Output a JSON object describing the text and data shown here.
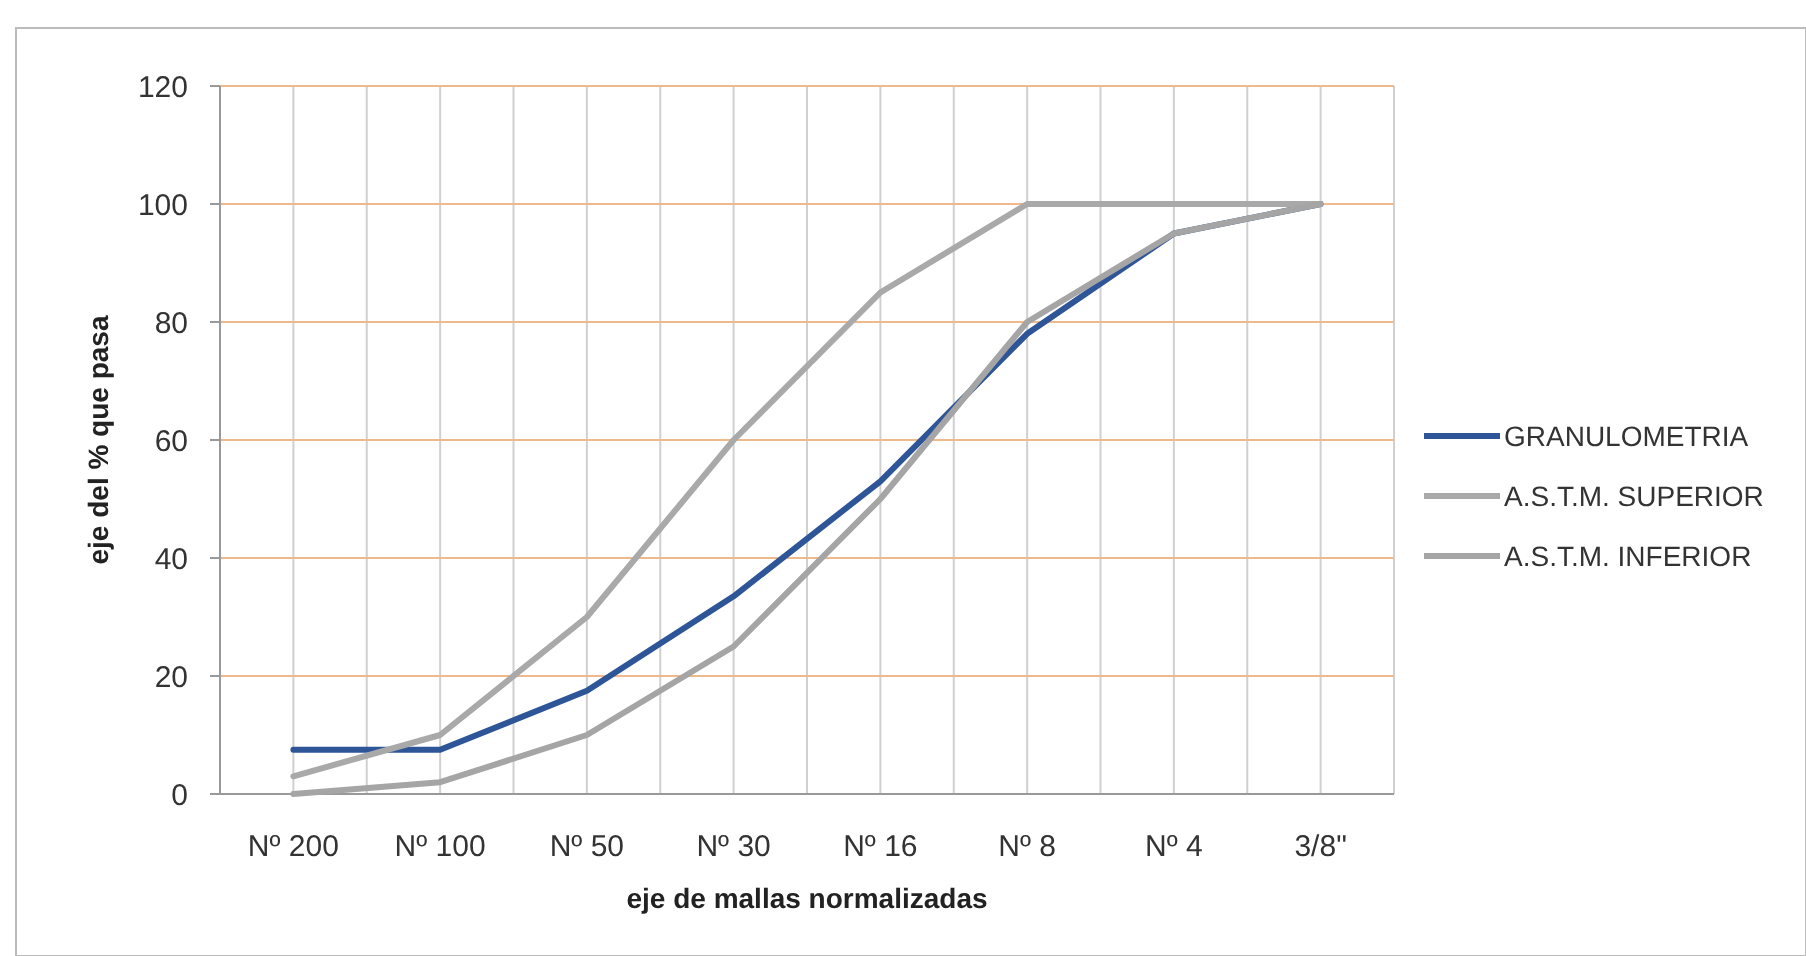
{
  "chart_data": {
    "type": "line",
    "xlabel": "eje de mallas normalizadas",
    "ylabel": "eje del % que pasa",
    "categories": [
      "Nº 200",
      "Nº 100",
      "Nº 50",
      "Nº 30",
      "Nº 16",
      "Nº 8",
      "Nº 4",
      "3/8\""
    ],
    "series": [
      {
        "name": "GRANULOMETRIA",
        "color": "#2e5597",
        "values": [
          7.5,
          7.5,
          17.5,
          33.5,
          53,
          78,
          95,
          100
        ]
      },
      {
        "name": "A.S.T.M. SUPERIOR",
        "color": "#a9a9a9",
        "values": [
          3,
          10,
          30,
          60,
          85,
          100,
          100,
          100
        ]
      },
      {
        "name": "A.S.T.M. INFERIOR",
        "color": "#a5a5a5",
        "values": [
          0,
          2,
          10,
          25,
          50,
          80,
          95,
          100
        ]
      }
    ],
    "ylim": [
      0,
      120
    ],
    "yticks": [
      0,
      20,
      40,
      60,
      80,
      100,
      120
    ],
    "grid": true,
    "legend": "right",
    "marker": "none",
    "line_style": "solid"
  }
}
